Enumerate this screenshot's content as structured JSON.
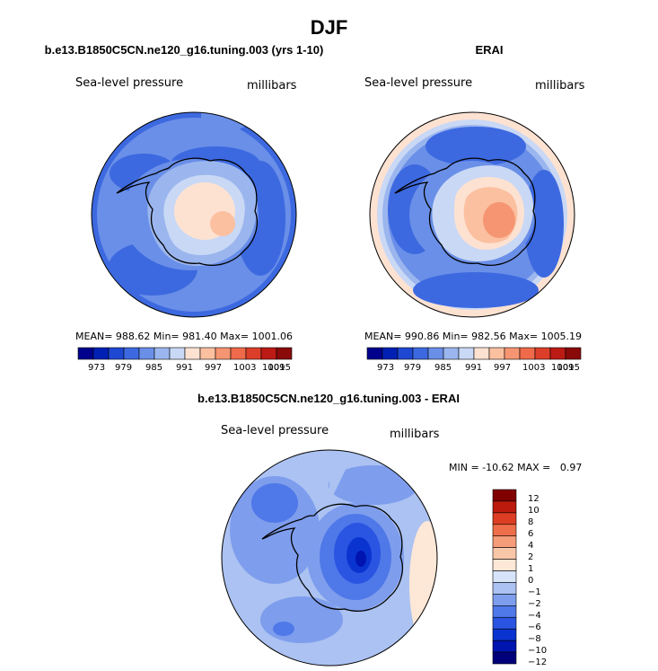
{
  "page": {
    "title": "DJF"
  },
  "panels": {
    "left": {
      "heading": "b.e13.B1850C5CN.ne120_g16.tuning.003 (yrs 1-10)",
      "left_label": "Sea-level pressure",
      "right_label": "millibars",
      "stats": "MEAN= 988.62   Min= 981.40   Max= 1001.06"
    },
    "right": {
      "heading": "ERAI",
      "left_label": "Sea-level pressure",
      "right_label": "millibars",
      "stats": "MEAN= 990.86   Min= 982.56   Max= 1005.19"
    },
    "diff": {
      "heading": "b.e13.B1850C5CN.ne120_g16.tuning.003 - ERAI",
      "left_label": "Sea-level pressure",
      "right_label": "millibars",
      "stats": "MIN = -10.62 MAX =   0.97"
    }
  },
  "colors": {
    "abs_scale": [
      "#00008c",
      "#0020b4",
      "#1f48d2",
      "#3d69e0",
      "#6a8fe8",
      "#9bb6ee",
      "#c9d8f5",
      "#fde2d2",
      "#fbc0a0",
      "#f69572",
      "#ee6a4a",
      "#dc3e2a",
      "#bc1a14",
      "#8a0a0a"
    ],
    "diff_scale": [
      "#00007a",
      "#0014b0",
      "#0a34d0",
      "#2a55e2",
      "#4f78e8",
      "#7e9ded",
      "#abc2f2",
      "#d7e3f8",
      "#fde7d6",
      "#fac6a8",
      "#f59c78",
      "#ee6e4a",
      "#dd3d22",
      "#bb1a0c",
      "#800000"
    ],
    "land_outline": "#000000"
  },
  "chart_data": [
    {
      "type": "heatmap",
      "title": "b.e13.B1850C5CN.ne120_g16.tuning.003 (yrs 1-10)",
      "variable": "Sea-level pressure",
      "units": "millibars",
      "projection": "south polar stereographic",
      "mean": 988.62,
      "min": 981.4,
      "max": 1001.06,
      "colorbar_levels": [
        973,
        976,
        979,
        982,
        985,
        988,
        991,
        994,
        997,
        1000,
        1003,
        1006,
        1009,
        1012,
        1015
      ],
      "colorbar_tick_labels": [
        "973",
        "979",
        "985",
        "991",
        "997",
        "1003",
        "1009",
        "1015"
      ]
    },
    {
      "type": "heatmap",
      "title": "ERAI",
      "variable": "Sea-level pressure",
      "units": "millibars",
      "projection": "south polar stereographic",
      "mean": 990.86,
      "min": 982.56,
      "max": 1005.19,
      "colorbar_levels": [
        973,
        976,
        979,
        982,
        985,
        988,
        991,
        994,
        997,
        1000,
        1003,
        1006,
        1009,
        1012,
        1015
      ],
      "colorbar_tick_labels": [
        "973",
        "979",
        "985",
        "991",
        "997",
        "1003",
        "1009",
        "1015"
      ]
    },
    {
      "type": "heatmap",
      "title": "b.e13.B1850C5CN.ne120_g16.tuning.003 - ERAI",
      "variable": "Sea-level pressure",
      "units": "millibars",
      "projection": "south polar stereographic",
      "min": -10.62,
      "max": 0.97,
      "colorbar_levels": [
        -12,
        -10,
        -8,
        -6,
        -4,
        -2,
        -1,
        0,
        1,
        2,
        4,
        6,
        8,
        10,
        12
      ],
      "colorbar_tick_labels": [
        "12",
        "10",
        "8",
        "6",
        "4",
        "2",
        "1",
        "0",
        "−1",
        "−2",
        "−4",
        "−6",
        "−8",
        "−10",
        "−12"
      ]
    }
  ]
}
